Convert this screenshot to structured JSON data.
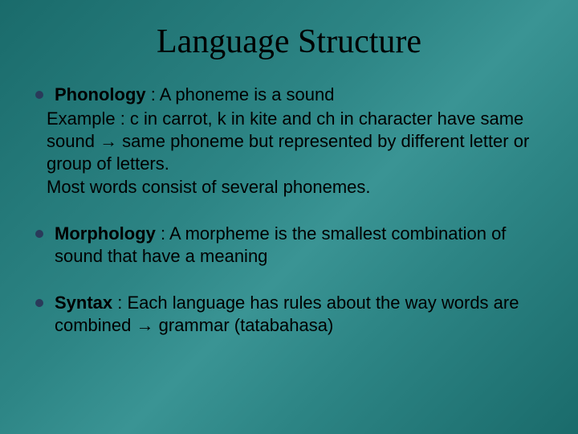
{
  "slide": {
    "background_gradient": [
      "#1a6b6b",
      "#2d8585",
      "#3a9494",
      "#2d8585",
      "#1a6b6b"
    ],
    "title": "Language Structure",
    "title_color": "#000000",
    "title_fontsize": 42,
    "title_font": "Times New Roman",
    "body_color": "#000000",
    "body_fontsize": 22,
    "bullet_color": "#2a3a5a",
    "bullets": [
      {
        "term": "Phonology",
        "term_suffix": " : A phoneme is a sound",
        "continuation": "Example : c in carrot, k in kite and ch in character have same sound → same phoneme but represented by different letter or group of letters.\nMost words consist of several phonemes."
      },
      {
        "term": "Morphology",
        "term_suffix": " : A morpheme is the smallest combination of sound that have a meaning",
        "continuation": ""
      },
      {
        "term": "Syntax",
        "term_suffix": " : Each language has rules about the way words are combined → grammar (tatabahasa)",
        "continuation": ""
      }
    ]
  }
}
